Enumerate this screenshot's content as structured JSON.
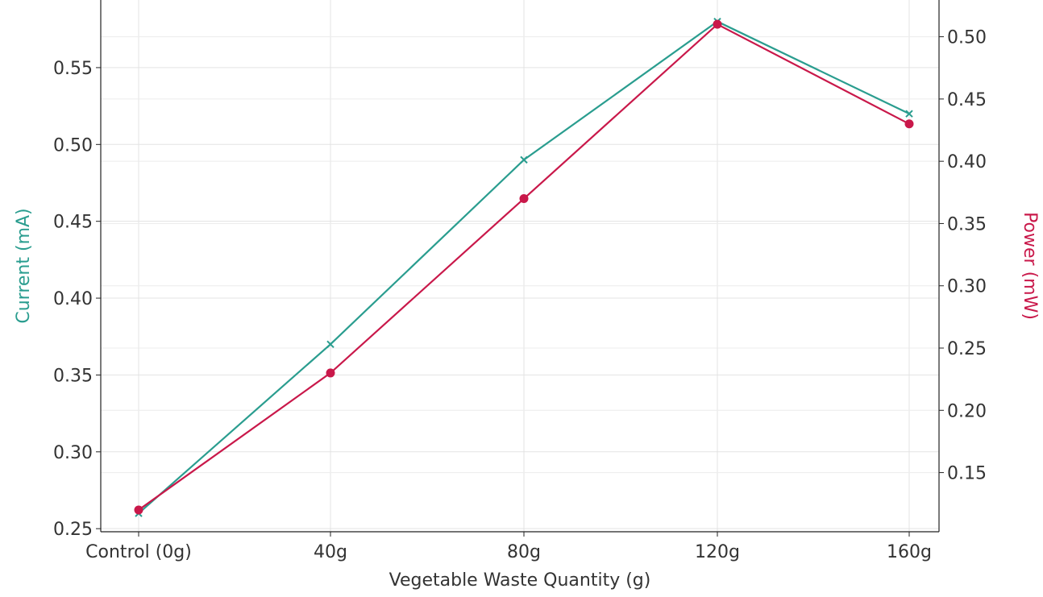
{
  "chart_data": {
    "type": "line",
    "categories": [
      "Control (0g)",
      "40g",
      "80g",
      "120g",
      "160g"
    ],
    "xlabel": "Vegetable Waste Quantity (g)",
    "series": [
      {
        "axis": "left",
        "label": "Current (mA)",
        "color": "#2a9d8f",
        "marker": "x",
        "values": [
          0.26,
          0.37,
          0.49,
          0.58,
          0.52
        ]
      },
      {
        "axis": "right",
        "label": "Power (mW)",
        "color": "#c9184a",
        "marker": "circle",
        "values": [
          0.12,
          0.23,
          0.37,
          0.51,
          0.43
        ]
      }
    ],
    "y_left": {
      "label": "Current (mA)",
      "ylim": [
        0.248,
        0.594
      ],
      "ticks": [
        0.25,
        0.3,
        0.35,
        0.4,
        0.45,
        0.5,
        0.55
      ],
      "tick_labels": [
        "0.25",
        "0.30",
        "0.35",
        "0.40",
        "0.45",
        "0.50",
        "0.55"
      ]
    },
    "y_right": {
      "label": "Power (mW)",
      "ylim": [
        0.1025,
        0.5295
      ],
      "ticks": [
        0.15,
        0.2,
        0.25,
        0.3,
        0.35,
        0.4,
        0.45,
        0.5
      ],
      "tick_labels": [
        "0.15",
        "0.20",
        "0.25",
        "0.30",
        "0.35",
        "0.40",
        "0.45",
        "0.50"
      ]
    },
    "grid": true
  }
}
